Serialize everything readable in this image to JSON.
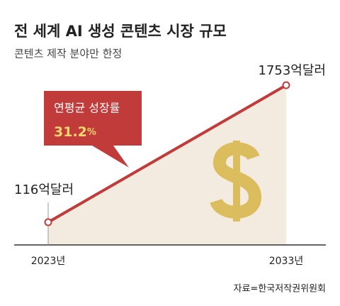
{
  "chart_data": {
    "type": "area",
    "title": "전 세계 AI 생성 콘텐츠 시장 규모",
    "subtitle": "콘텐츠 제작 분야만 한정",
    "categories": [
      "2023년",
      "2033년"
    ],
    "values": [
      116,
      1753
    ],
    "value_labels": [
      "116억달러",
      "1753억달러"
    ],
    "color": "#c23b3b",
    "fill": "#f3ebdf",
    "annotation": {
      "text": "연평균 성장률",
      "value": 31.2,
      "unit": "%"
    },
    "source": "자료=한국저작권위원회"
  }
}
